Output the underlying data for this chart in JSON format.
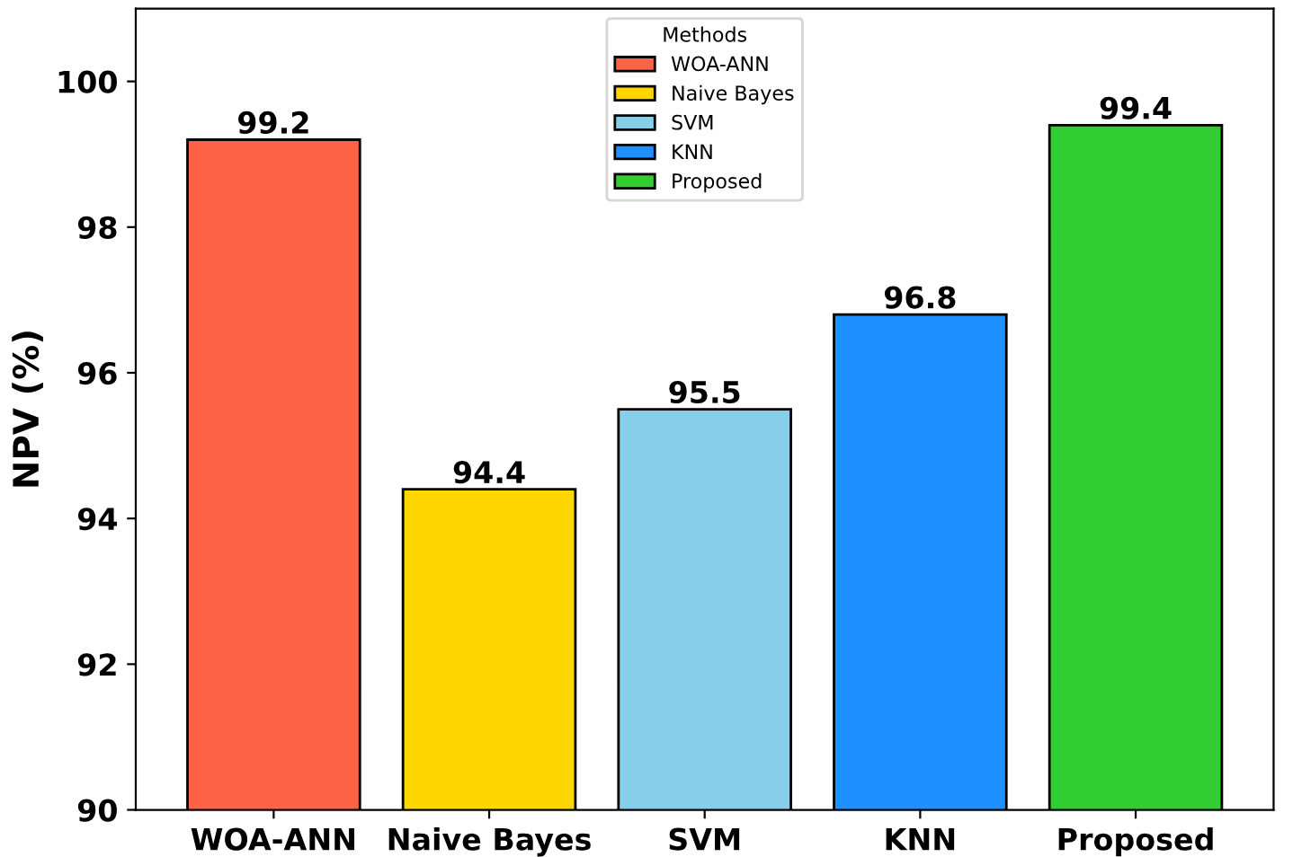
{
  "chart_data": {
    "type": "bar",
    "ylabel": "NPV (%)",
    "categories": [
      "WOA-ANN",
      "Naive Bayes",
      "SVM",
      "KNN",
      "Proposed"
    ],
    "series": [
      {
        "name": "WOA-ANN",
        "color": "#ff6347",
        "values": [
          99.2,
          null,
          null,
          null,
          null
        ]
      },
      {
        "name": "Naive Bayes",
        "color": "#ffd700",
        "values": [
          null,
          94.4,
          null,
          null,
          null
        ]
      },
      {
        "name": "SVM",
        "color": "#87ceeb",
        "values": [
          null,
          null,
          95.5,
          null,
          null
        ]
      },
      {
        "name": "KNN",
        "color": "#1e90ff",
        "values": [
          null,
          null,
          null,
          96.8,
          null
        ]
      },
      {
        "name": "Proposed",
        "color": "#32cd32",
        "values": [
          null,
          null,
          null,
          null,
          99.4
        ]
      }
    ],
    "ylim": [
      90,
      101
    ],
    "yticks": [
      90,
      92,
      94,
      96,
      98,
      100
    ],
    "data_labels": true,
    "legend": "top",
    "legend_title": "Methods",
    "grid": false
  }
}
